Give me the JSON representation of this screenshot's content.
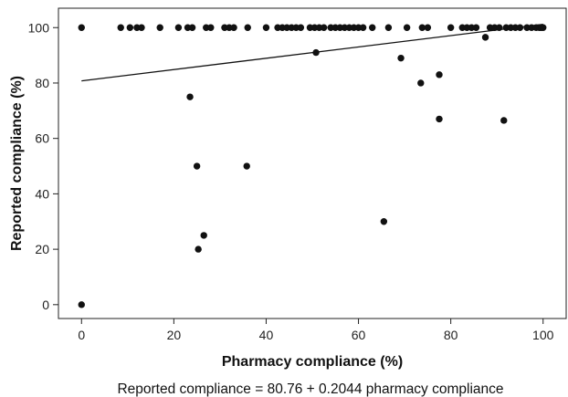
{
  "chart_data": {
    "type": "scatter",
    "title": "",
    "xlabel": "Pharmacy compliance (%)",
    "ylabel": "Reported compliance (%)",
    "xlim": [
      -5,
      105
    ],
    "ylim": [
      -5,
      107
    ],
    "xticks": [
      "0",
      "20",
      "40",
      "60",
      "80",
      "100"
    ],
    "yticks": [
      "0",
      "20",
      "40",
      "60",
      "80",
      "100"
    ],
    "grid": false,
    "regression_line": {
      "intercept": 80.76,
      "slope": 0.2044,
      "x_range": [
        0,
        100
      ]
    },
    "equation": "Reported compliance = 80.76 + 0.2044 pharmacy compliance",
    "points": [
      [
        0,
        100
      ],
      [
        0,
        0
      ],
      [
        8.5,
        100
      ],
      [
        10.5,
        100
      ],
      [
        12,
        100
      ],
      [
        13,
        100
      ],
      [
        17,
        100
      ],
      [
        21,
        100
      ],
      [
        23,
        100
      ],
      [
        24,
        100
      ],
      [
        23.5,
        75
      ],
      [
        25,
        50
      ],
      [
        25.3,
        20
      ],
      [
        26.5,
        25
      ],
      [
        27,
        100
      ],
      [
        28,
        100
      ],
      [
        31,
        100
      ],
      [
        32,
        100
      ],
      [
        33,
        100
      ],
      [
        36,
        100
      ],
      [
        35.8,
        50
      ],
      [
        40,
        100
      ],
      [
        42.5,
        100
      ],
      [
        43.5,
        100
      ],
      [
        44.5,
        100
      ],
      [
        45.5,
        100
      ],
      [
        46.5,
        100
      ],
      [
        47.5,
        100
      ],
      [
        49.5,
        100
      ],
      [
        50.5,
        100
      ],
      [
        51.5,
        100
      ],
      [
        52.5,
        100
      ],
      [
        50.8,
        91
      ],
      [
        54,
        100
      ],
      [
        55,
        100
      ],
      [
        56,
        100
      ],
      [
        57,
        100
      ],
      [
        58,
        100
      ],
      [
        59,
        100
      ],
      [
        60,
        100
      ],
      [
        61,
        100
      ],
      [
        63,
        100
      ],
      [
        65.5,
        30
      ],
      [
        66.5,
        100
      ],
      [
        69.2,
        89
      ],
      [
        70.5,
        100
      ],
      [
        73.5,
        80
      ],
      [
        73.8,
        100
      ],
      [
        75,
        100
      ],
      [
        77.5,
        83
      ],
      [
        77.5,
        67
      ],
      [
        80,
        100
      ],
      [
        82.5,
        100
      ],
      [
        83.5,
        100
      ],
      [
        84.5,
        100
      ],
      [
        85.5,
        100
      ],
      [
        87.5,
        96.5
      ],
      [
        88.5,
        100
      ],
      [
        89.5,
        100
      ],
      [
        90.5,
        100
      ],
      [
        91.5,
        66.5
      ],
      [
        92,
        100
      ],
      [
        93,
        100
      ],
      [
        94,
        100
      ],
      [
        95,
        100
      ],
      [
        96.5,
        100
      ],
      [
        97.5,
        100
      ],
      [
        98.5,
        100
      ],
      [
        99.2,
        100
      ],
      [
        99.6,
        100
      ],
      [
        100,
        100
      ]
    ]
  }
}
